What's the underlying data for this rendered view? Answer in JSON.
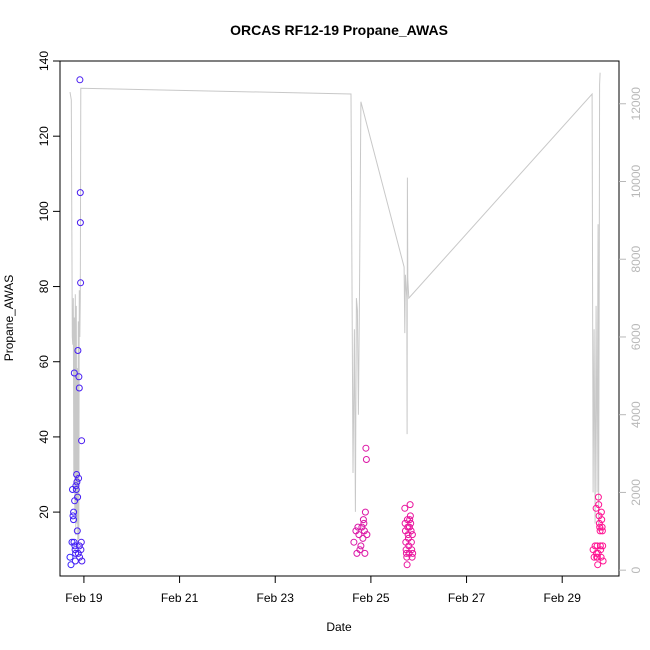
{
  "chart_data": {
    "type": "scatter",
    "title": "ORCAS RF12-19 Propane_AWAS",
    "xlabel": "Date",
    "ylabel": "Propane_AWAS",
    "xlim": [
      "2016-02-18T12:00",
      "2016-03-01T04:30"
    ],
    "ylim": [
      3.0,
      140.0
    ],
    "y2lim": [
      -150,
      13100
    ],
    "x_ticks": [
      {
        "date": "2016-02-19T00:00",
        "label": "Feb 19"
      },
      {
        "date": "2016-02-21T00:00",
        "label": "Feb 21"
      },
      {
        "date": "2016-02-23T00:00",
        "label": "Feb 23"
      },
      {
        "date": "2016-02-25T00:00",
        "label": "Feb 25"
      },
      {
        "date": "2016-02-27T00:00",
        "label": "Feb 27"
      },
      {
        "date": "2016-02-29T00:00",
        "label": "Feb 29"
      }
    ],
    "y_ticks": [
      "20",
      "40",
      "60",
      "80",
      "100",
      "120",
      "140"
    ],
    "y2_ticks": [
      "0",
      "2000",
      "4000",
      "6000",
      "8000",
      "10000",
      "12000"
    ],
    "grid": false,
    "series": [
      {
        "style": "points",
        "color_gradient": [
          "#2e1fff",
          "#ff1493"
        ],
        "marker": "open-circle",
        "points": [
          [
            "2016-02-18T17:00",
            8
          ],
          [
            "2016-02-18T17:30",
            6
          ],
          [
            "2016-02-18T18:00",
            12
          ],
          [
            "2016-02-18T18:15",
            26
          ],
          [
            "2016-02-18T18:30",
            19
          ],
          [
            "2016-02-18T18:45",
            18
          ],
          [
            "2016-02-18T19:00",
            12
          ],
          [
            "2016-02-18T19:10",
            57
          ],
          [
            "2016-02-18T19:20",
            23
          ],
          [
            "2016-02-18T19:30",
            11
          ],
          [
            "2016-02-18T19:40",
            7
          ],
          [
            "2016-02-18T19:50",
            9
          ],
          [
            "2016-02-18T20:00",
            27
          ],
          [
            "2016-02-18T20:10",
            26
          ],
          [
            "2016-02-18T20:20",
            30
          ],
          [
            "2016-02-18T20:30",
            28
          ],
          [
            "2016-02-18T20:40",
            15
          ],
          [
            "2016-02-18T20:50",
            24
          ],
          [
            "2016-02-18T21:00",
            63
          ],
          [
            "2016-02-18T21:10",
            9
          ],
          [
            "2016-02-18T21:20",
            29
          ],
          [
            "2016-02-18T21:30",
            56
          ],
          [
            "2016-02-18T21:40",
            53
          ],
          [
            "2016-02-18T21:45",
            11
          ],
          [
            "2016-02-18T21:50",
            8
          ],
          [
            "2016-02-18T22:00",
            135
          ],
          [
            "2016-02-18T22:10",
            105
          ],
          [
            "2016-02-18T22:15",
            97
          ],
          [
            "2016-02-18T22:20",
            81
          ],
          [
            "2016-02-18T22:30",
            10
          ],
          [
            "2016-02-18T22:40",
            12
          ],
          [
            "2016-02-18T22:50",
            39
          ],
          [
            "2016-02-18T23:00",
            7
          ],
          [
            "2016-02-18T18:50",
            20
          ],
          [
            "2016-02-18T19:35",
            10
          ],
          [
            "2016-02-24T15:30",
            12
          ],
          [
            "2016-02-24T16:30",
            15
          ],
          [
            "2016-02-24T17:00",
            9
          ],
          [
            "2016-02-24T17:30",
            16
          ],
          [
            "2016-02-24T18:00",
            14
          ],
          [
            "2016-02-24T18:30",
            10
          ],
          [
            "2016-02-24T19:00",
            11
          ],
          [
            "2016-02-24T19:30",
            16
          ],
          [
            "2016-02-24T20:00",
            13
          ],
          [
            "2016-02-24T20:15",
            18
          ],
          [
            "2016-02-24T20:30",
            17
          ],
          [
            "2016-02-24T20:45",
            15
          ],
          [
            "2016-02-24T21:00",
            9
          ],
          [
            "2016-02-24T21:15",
            20
          ],
          [
            "2016-02-24T21:30",
            37
          ],
          [
            "2016-02-24T21:45",
            34
          ],
          [
            "2016-02-24T22:00",
            14
          ],
          [
            "2016-02-25T17:00",
            21
          ],
          [
            "2016-02-25T17:10",
            17
          ],
          [
            "2016-02-25T17:20",
            15
          ],
          [
            "2016-02-25T17:30",
            12
          ],
          [
            "2016-02-25T17:40",
            10
          ],
          [
            "2016-02-25T17:50",
            9
          ],
          [
            "2016-02-25T18:00",
            8
          ],
          [
            "2016-02-25T18:10",
            6
          ],
          [
            "2016-02-25T18:20",
            18
          ],
          [
            "2016-02-25T18:30",
            16
          ],
          [
            "2016-02-25T18:40",
            14
          ],
          [
            "2016-02-25T18:50",
            13
          ],
          [
            "2016-02-25T19:00",
            11
          ],
          [
            "2016-02-25T19:10",
            9
          ],
          [
            "2016-02-25T19:20",
            16
          ],
          [
            "2016-02-25T19:30",
            18
          ],
          [
            "2016-02-25T19:40",
            22
          ],
          [
            "2016-02-25T19:50",
            19
          ],
          [
            "2016-02-25T20:00",
            17
          ],
          [
            "2016-02-25T20:10",
            15
          ],
          [
            "2016-02-25T20:20",
            12
          ],
          [
            "2016-02-25T20:30",
            10
          ],
          [
            "2016-02-25T20:40",
            8
          ],
          [
            "2016-02-25T20:50",
            14
          ],
          [
            "2016-02-25T21:00",
            9
          ],
          [
            "2016-02-29T15:30",
            10
          ],
          [
            "2016-02-29T16:00",
            8
          ],
          [
            "2016-02-29T16:30",
            11
          ],
          [
            "2016-02-29T17:00",
            21
          ],
          [
            "2016-02-29T17:10",
            9
          ],
          [
            "2016-02-29T17:20",
            8
          ],
          [
            "2016-02-29T17:30",
            11
          ],
          [
            "2016-02-29T17:40",
            8
          ],
          [
            "2016-02-29T17:50",
            6
          ],
          [
            "2016-02-29T18:00",
            9
          ],
          [
            "2016-02-29T18:10",
            24
          ],
          [
            "2016-02-29T18:20",
            22
          ],
          [
            "2016-02-29T18:30",
            19
          ],
          [
            "2016-02-29T18:40",
            17
          ],
          [
            "2016-02-29T18:50",
            16
          ],
          [
            "2016-02-29T19:00",
            15
          ],
          [
            "2016-02-29T19:10",
            11
          ],
          [
            "2016-02-29T19:20",
            10
          ],
          [
            "2016-02-29T19:30",
            8
          ],
          [
            "2016-02-29T19:40",
            20
          ],
          [
            "2016-02-29T19:50",
            18
          ],
          [
            "2016-02-29T20:00",
            16
          ],
          [
            "2016-02-29T20:10",
            15
          ],
          [
            "2016-02-29T20:20",
            11
          ],
          [
            "2016-02-29T20:30",
            7
          ]
        ]
      },
      {
        "style": "line",
        "axis": "right",
        "color": "#c8c8c8",
        "points": [
          [
            "2016-02-18T17:00",
            12300
          ],
          [
            "2016-02-18T17:40",
            12100
          ],
          [
            "2016-02-18T18:10",
            6000
          ],
          [
            "2016-02-18T18:25",
            5800
          ],
          [
            "2016-02-18T18:40",
            7000
          ],
          [
            "2016-02-18T18:55",
            2500
          ],
          [
            "2016-02-18T19:10",
            6500
          ],
          [
            "2016-02-18T19:25",
            1500
          ],
          [
            "2016-02-18T19:40",
            7100
          ],
          [
            "2016-02-18T19:55",
            900
          ],
          [
            "2016-02-18T20:10",
            6800
          ],
          [
            "2016-02-18T20:25",
            1200
          ],
          [
            "2016-02-18T20:40",
            5200
          ],
          [
            "2016-02-18T20:55",
            700
          ],
          [
            "2016-02-18T21:10",
            6400
          ],
          [
            "2016-02-18T21:25",
            800
          ],
          [
            "2016-02-18T21:40",
            7200
          ],
          [
            "2016-02-18T21:55",
            6000
          ],
          [
            "2016-02-18T22:10",
            7000
          ],
          [
            "2016-02-18T22:25",
            12400
          ],
          [
            "2016-02-24T14:00",
            12250
          ],
          [
            "2016-02-24T15:00",
            2500
          ],
          [
            "2016-02-24T15:45",
            6200
          ],
          [
            "2016-02-24T16:15",
            1500
          ],
          [
            "2016-02-24T16:45",
            7000
          ],
          [
            "2016-02-24T17:15",
            6700
          ],
          [
            "2016-02-24T17:45",
            4000
          ],
          [
            "2016-02-24T18:15",
            6800
          ],
          [
            "2016-02-24T19:00",
            12050
          ],
          [
            "2016-02-25T16:40",
            7800
          ],
          [
            "2016-02-25T17:00",
            6100
          ],
          [
            "2016-02-25T17:20",
            7600
          ],
          [
            "2016-02-25T18:00",
            7000
          ],
          [
            "2016-02-25T18:10",
            3500
          ],
          [
            "2016-02-25T18:20",
            10100
          ],
          [
            "2016-02-25T18:30",
            7500
          ],
          [
            "2016-02-25T19:00",
            7000
          ],
          [
            "2016-02-29T15:00",
            12250
          ],
          [
            "2016-02-29T15:30",
            2000
          ],
          [
            "2016-02-29T16:00",
            6200
          ],
          [
            "2016-02-29T16:30",
            1200
          ],
          [
            "2016-02-29T17:00",
            6800
          ],
          [
            "2016-02-29T17:30",
            2000
          ],
          [
            "2016-02-29T18:00",
            8900
          ],
          [
            "2016-02-29T18:15",
            1000
          ],
          [
            "2016-02-29T18:30",
            6000
          ],
          [
            "2016-02-29T18:45",
            12500
          ],
          [
            "2016-02-29T19:00",
            12800
          ]
        ]
      }
    ]
  }
}
